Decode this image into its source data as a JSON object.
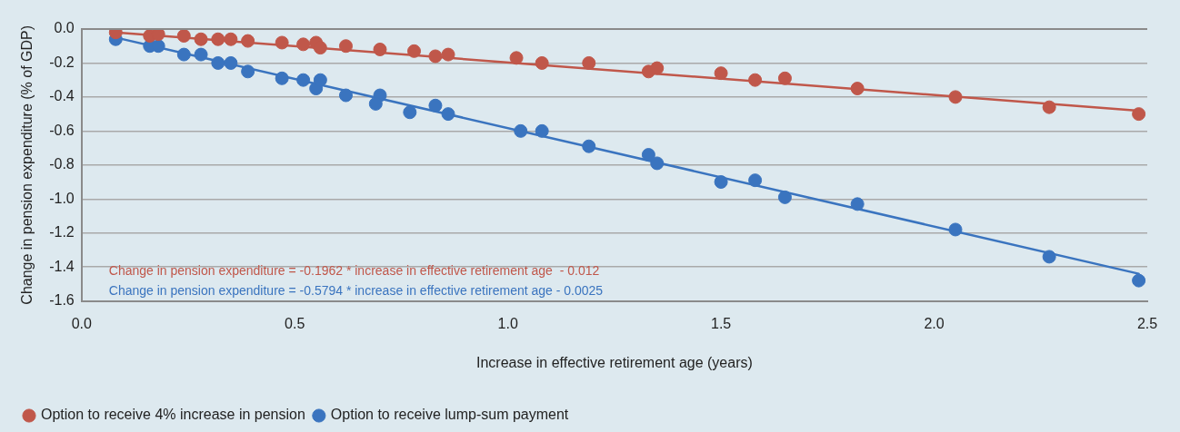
{
  "chart_data": {
    "type": "scatter",
    "xlabel": "Increase in effective retirement age (years)",
    "ylabel": "Change in pension expenditure (% of GDP)",
    "xlim": [
      0,
      2.5
    ],
    "xticks": [
      {
        "value": 0,
        "label": "0.0"
      },
      0.5,
      {
        "value": 1,
        "label": "1.0"
      },
      1.5,
      {
        "value": 2,
        "label": "2.0"
      },
      2.5
    ],
    "ylim": [
      -1.6,
      0
    ],
    "yticks": [
      {
        "value": 0,
        "label": "0.0"
      },
      -0.2,
      -0.4,
      -0.6,
      -0.8,
      {
        "value": -1,
        "label": "-1.0"
      },
      -1.2,
      -1.4,
      -1.6
    ],
    "grid": "y",
    "legend": "bottom",
    "marker": "circle",
    "annotations": [
      "Change in pension expenditure = -0.1962 * increase in effective retirement age  - 0.012",
      "Change in pension expenditure = -0.5794 * increase in effective retirement age - 0.0025"
    ],
    "series": [
      {
        "name": "Option to receive 4% increase in pension",
        "type": "scatter",
        "color": "#c0574a",
        "x": [
          0.08,
          0.16,
          0.18,
          0.24,
          0.28,
          0.32,
          0.35,
          0.39,
          0.47,
          0.52,
          0.55,
          0.56,
          0.62,
          0.7,
          0.78,
          0.83,
          0.86,
          1.02,
          1.08,
          1.19,
          1.33,
          1.35,
          1.5,
          1.58,
          1.65,
          1.82,
          2.05,
          2.27,
          2.48
        ],
        "values": [
          -0.02,
          -0.04,
          -0.03,
          -0.04,
          -0.06,
          -0.06,
          -0.06,
          -0.07,
          -0.08,
          -0.09,
          -0.08,
          -0.11,
          -0.1,
          -0.12,
          -0.13,
          -0.16,
          -0.15,
          -0.17,
          -0.2,
          -0.2,
          -0.25,
          -0.23,
          -0.26,
          -0.3,
          -0.29,
          -0.35,
          -0.4,
          -0.46,
          -0.5
        ]
      },
      {
        "name": "Option to receive lump-sum payment",
        "type": "scatter",
        "color": "#3a74bf",
        "x": [
          0.08,
          0.16,
          0.18,
          0.24,
          0.28,
          0.32,
          0.35,
          0.39,
          0.47,
          0.52,
          0.55,
          0.56,
          0.62,
          0.7,
          0.69,
          0.77,
          0.83,
          0.86,
          1.03,
          1.08,
          1.19,
          1.33,
          1.35,
          1.5,
          1.58,
          1.65,
          1.82,
          2.05,
          2.27,
          2.48
        ],
        "values": [
          -0.06,
          -0.1,
          -0.1,
          -0.15,
          -0.15,
          -0.2,
          -0.2,
          -0.25,
          -0.29,
          -0.3,
          -0.35,
          -0.3,
          -0.39,
          -0.39,
          -0.44,
          -0.49,
          -0.45,
          -0.5,
          -0.6,
          -0.6,
          -0.69,
          -0.74,
          -0.79,
          -0.9,
          -0.89,
          -0.99,
          -1.03,
          -1.18,
          -1.34,
          -1.48
        ]
      },
      {
        "type": "line",
        "marker": "none",
        "color": "#c0574a",
        "x": [
          0.08,
          2.48
        ],
        "values": [
          -0.02,
          -0.48
        ]
      },
      {
        "type": "line",
        "marker": "none",
        "color": "#3a74bf",
        "x": [
          0.08,
          2.48
        ],
        "values": [
          -0.05,
          -1.44
        ]
      }
    ]
  }
}
